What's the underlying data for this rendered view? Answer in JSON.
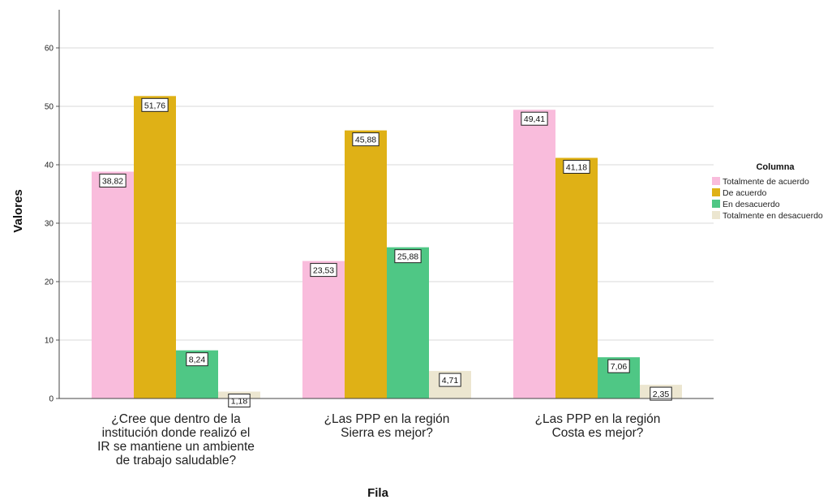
{
  "chart_data": {
    "type": "bar",
    "xlabel": "Fila",
    "ylabel": "Valores",
    "ylim": [
      0,
      65
    ],
    "yticks": [
      0,
      10,
      20,
      30,
      40,
      50,
      60
    ],
    "grid": true,
    "legend": {
      "title": "Columna",
      "placement": "right"
    },
    "categories": [
      [
        "¿Cree que dentro de la",
        "institución donde realizó el",
        "IR se mantiene un ambiente",
        "de trabajo saludable?"
      ],
      [
        "¿Las PPP en la región",
        "Sierra es mejor?"
      ],
      [
        "¿Las PPP en la región",
        "Costa es mejor?"
      ]
    ],
    "series": [
      {
        "name": "Totalmente de acuerdo",
        "color": "#f9bcdc",
        "values": [
          38.82,
          23.53,
          49.41
        ],
        "labels": [
          "38,82",
          "23,53",
          "49,41"
        ]
      },
      {
        "name": "De acuerdo",
        "color": "#dfb116",
        "values": [
          51.76,
          45.88,
          41.18
        ],
        "labels": [
          "51,76",
          "45,88",
          "41,18"
        ]
      },
      {
        "name": "En desacuerdo",
        "color": "#4fc785",
        "values": [
          8.24,
          25.88,
          7.06
        ],
        "labels": [
          "8,24",
          "25,88",
          "7,06"
        ]
      },
      {
        "name": "Totalmente en desacuerdo",
        "color": "#ece6d0",
        "values": [
          1.18,
          4.71,
          2.35
        ],
        "labels": [
          "1,18",
          "4,71",
          "2,35"
        ]
      }
    ]
  }
}
